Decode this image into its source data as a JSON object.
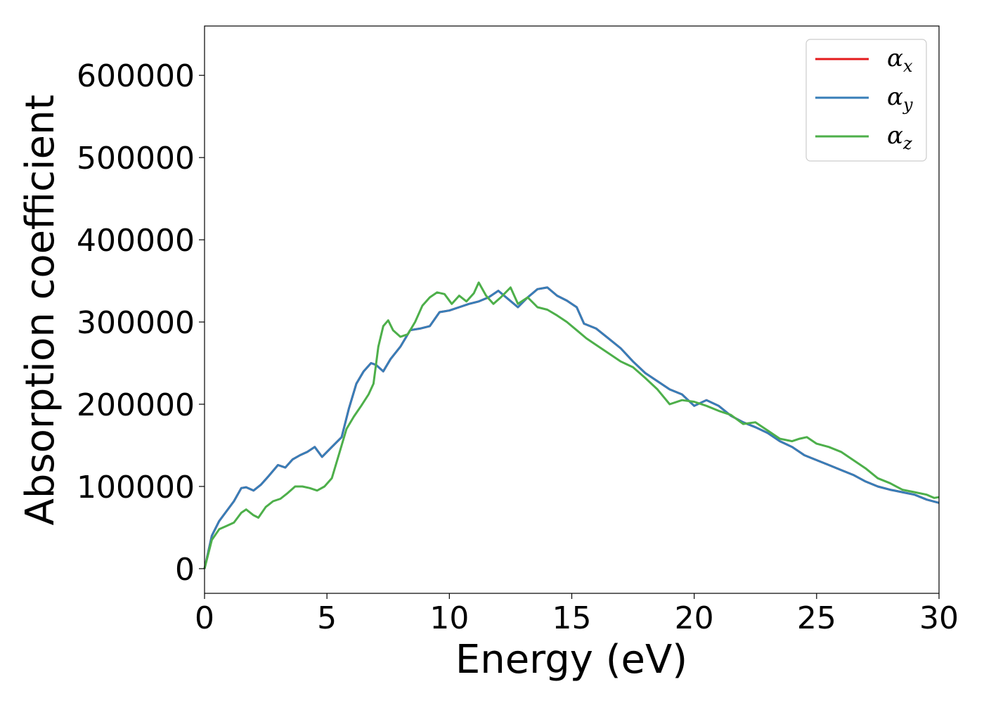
{
  "chart_data": {
    "type": "line",
    "xlabel": "Energy (eV)",
    "ylabel": "Absorption coefficient",
    "xlim": [
      0,
      30
    ],
    "ylim": [
      -30000,
      660000
    ],
    "xticks": [
      0,
      5,
      10,
      15,
      20,
      25,
      30
    ],
    "yticks": [
      0,
      100000,
      200000,
      300000,
      400000,
      500000,
      600000
    ],
    "grid": false,
    "legend_position": "top-right",
    "series": [
      {
        "name": "α",
        "subscript": "x",
        "color": "#e41a1c",
        "x": [
          0,
          0.3,
          0.6,
          0.9,
          1.2,
          1.5,
          1.7,
          2.0,
          2.3,
          2.6,
          3.0,
          3.3,
          3.6,
          3.9,
          4.2,
          4.5,
          4.8,
          5.2,
          5.6,
          5.9,
          6.2,
          6.5,
          6.8,
          7.0,
          7.3,
          7.6,
          8.0,
          8.4,
          8.8,
          9.2,
          9.6,
          10.0,
          10.4,
          10.8,
          11.2,
          11.6,
          12.0,
          12.4,
          12.8,
          13.2,
          13.6,
          14.0,
          14.4,
          14.8,
          15.2,
          15.5,
          16.0,
          16.5,
          17.0,
          17.5,
          18.0,
          18.5,
          19.0,
          19.5,
          20.0,
          20.5,
          21.0,
          21.5,
          22.0,
          22.5,
          23.0,
          23.5,
          24.0,
          24.5,
          25.0,
          25.5,
          26.0,
          26.5,
          27.0,
          27.5,
          28.0,
          28.5,
          29.0,
          29.5,
          30.0
        ],
        "y": [
          0,
          40000,
          58000,
          70000,
          82000,
          98000,
          99000,
          95000,
          102000,
          112000,
          126000,
          123000,
          133000,
          138000,
          142000,
          148000,
          136000,
          148000,
          160000,
          195000,
          225000,
          240000,
          250000,
          248000,
          240000,
          255000,
          270000,
          290000,
          292000,
          295000,
          312000,
          314000,
          318000,
          322000,
          325000,
          330000,
          338000,
          328000,
          318000,
          330000,
          340000,
          342000,
          332000,
          326000,
          318000,
          298000,
          292000,
          280000,
          268000,
          252000,
          238000,
          228000,
          218000,
          212000,
          198000,
          205000,
          198000,
          186000,
          178000,
          172000,
          165000,
          155000,
          148000,
          138000,
          132000,
          126000,
          120000,
          114000,
          106000,
          100000,
          96000,
          93000,
          90000,
          84000,
          80000
        ]
      },
      {
        "name": "α",
        "subscript": "y",
        "color": "#377eb8",
        "x": [
          0,
          0.3,
          0.6,
          0.9,
          1.2,
          1.5,
          1.7,
          2.0,
          2.3,
          2.6,
          3.0,
          3.3,
          3.6,
          3.9,
          4.2,
          4.5,
          4.8,
          5.2,
          5.6,
          5.9,
          6.2,
          6.5,
          6.8,
          7.0,
          7.3,
          7.6,
          8.0,
          8.4,
          8.8,
          9.2,
          9.6,
          10.0,
          10.4,
          10.8,
          11.2,
          11.6,
          12.0,
          12.4,
          12.8,
          13.2,
          13.6,
          14.0,
          14.4,
          14.8,
          15.2,
          15.5,
          16.0,
          16.5,
          17.0,
          17.5,
          18.0,
          18.5,
          19.0,
          19.5,
          20.0,
          20.5,
          21.0,
          21.5,
          22.0,
          22.5,
          23.0,
          23.5,
          24.0,
          24.5,
          25.0,
          25.5,
          26.0,
          26.5,
          27.0,
          27.5,
          28.0,
          28.5,
          29.0,
          29.5,
          30.0
        ],
        "y": [
          0,
          40000,
          58000,
          70000,
          82000,
          98000,
          99000,
          95000,
          102000,
          112000,
          126000,
          123000,
          133000,
          138000,
          142000,
          148000,
          136000,
          148000,
          160000,
          195000,
          225000,
          240000,
          250000,
          248000,
          240000,
          255000,
          270000,
          290000,
          292000,
          295000,
          312000,
          314000,
          318000,
          322000,
          325000,
          330000,
          338000,
          328000,
          318000,
          330000,
          340000,
          342000,
          332000,
          326000,
          318000,
          298000,
          292000,
          280000,
          268000,
          252000,
          238000,
          228000,
          218000,
          212000,
          198000,
          205000,
          198000,
          186000,
          178000,
          172000,
          165000,
          155000,
          148000,
          138000,
          132000,
          126000,
          120000,
          114000,
          106000,
          100000,
          96000,
          93000,
          90000,
          84000,
          80000
        ]
      },
      {
        "name": "α",
        "subscript": "z",
        "color": "#4daf4a",
        "x": [
          0,
          0.3,
          0.6,
          0.9,
          1.2,
          1.5,
          1.7,
          2.0,
          2.2,
          2.5,
          2.8,
          3.1,
          3.4,
          3.7,
          4.0,
          4.3,
          4.6,
          4.9,
          5.2,
          5.5,
          5.8,
          6.1,
          6.4,
          6.7,
          6.9,
          7.1,
          7.3,
          7.5,
          7.7,
          8.0,
          8.3,
          8.6,
          8.9,
          9.2,
          9.5,
          9.8,
          10.1,
          10.4,
          10.7,
          11.0,
          11.2,
          11.5,
          11.8,
          12.1,
          12.5,
          12.8,
          13.2,
          13.6,
          14.0,
          14.4,
          14.8,
          15.2,
          15.6,
          16.0,
          16.5,
          17.0,
          17.5,
          18.0,
          18.5,
          19.0,
          19.5,
          20.0,
          20.5,
          21.0,
          21.5,
          22.0,
          22.5,
          23.0,
          23.5,
          24.0,
          24.3,
          24.6,
          25.0,
          25.5,
          26.0,
          26.5,
          27.0,
          27.5,
          28.0,
          28.5,
          29.0,
          29.5,
          29.8,
          30.0
        ],
        "y": [
          0,
          35000,
          48000,
          52000,
          56000,
          68000,
          72000,
          65000,
          62000,
          75000,
          82000,
          85000,
          92000,
          100000,
          100000,
          98000,
          95000,
          100000,
          110000,
          140000,
          170000,
          185000,
          198000,
          212000,
          225000,
          270000,
          295000,
          302000,
          290000,
          282000,
          285000,
          300000,
          320000,
          330000,
          336000,
          334000,
          322000,
          332000,
          325000,
          335000,
          348000,
          332000,
          322000,
          330000,
          342000,
          322000,
          330000,
          318000,
          315000,
          308000,
          300000,
          290000,
          280000,
          272000,
          262000,
          252000,
          245000,
          232000,
          218000,
          200000,
          205000,
          203000,
          198000,
          192000,
          187000,
          176000,
          178000,
          168000,
          158000,
          155000,
          158000,
          160000,
          152000,
          148000,
          142000,
          132000,
          122000,
          110000,
          104000,
          96000,
          93000,
          90000,
          86000,
          87000
        ]
      }
    ]
  }
}
